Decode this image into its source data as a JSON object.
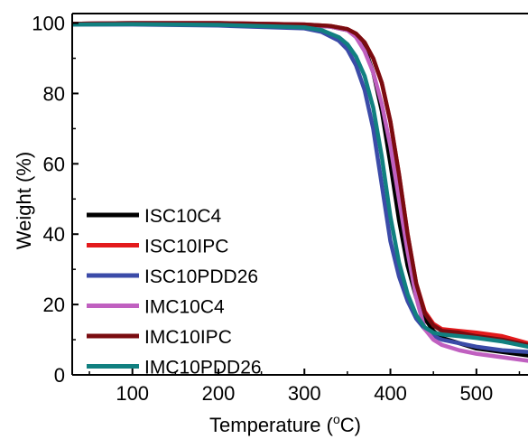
{
  "chart_data": {
    "type": "line",
    "title": "",
    "xlabel": "Temperature (",
    "xlabel_unit_sup": "o",
    "xlabel_unit_tail": "C)",
    "ylabel": "Weight (%)",
    "xlim": [
      30,
      560
    ],
    "ylim": [
      0,
      104
    ],
    "x_ticks": [
      100,
      200,
      300,
      400,
      500
    ],
    "x_tick_labels": [
      "100",
      "200",
      "300",
      "400",
      "500"
    ],
    "y_ticks": [
      0,
      20,
      40,
      60,
      80,
      100
    ],
    "y_tick_labels": [
      "0",
      "20",
      "40",
      "60",
      "80",
      "100"
    ],
    "grid": false,
    "legend_position": "bottom-left",
    "series": [
      {
        "name": "ISC10C4",
        "color": "#000000",
        "x": [
          30,
          100,
          200,
          300,
          330,
          350,
          360,
          370,
          380,
          390,
          400,
          410,
          420,
          430,
          440,
          450,
          460,
          480,
          500,
          530,
          560
        ],
        "y": [
          99.8,
          100,
          100,
          99.5,
          99.0,
          98.0,
          96.5,
          93.0,
          86.0,
          75.0,
          60.0,
          44.0,
          31.0,
          22.0,
          16.0,
          12.5,
          10.5,
          9.0,
          7.5,
          6.5,
          5.5
        ]
      },
      {
        "name": "ISC10IPC",
        "color": "#e31a1c",
        "x": [
          30,
          100,
          200,
          300,
          330,
          350,
          360,
          370,
          380,
          390,
          400,
          410,
          420,
          430,
          440,
          450,
          460,
          480,
          500,
          530,
          560
        ],
        "y": [
          99.8,
          100,
          100,
          99.6,
          99.2,
          98.3,
          97.0,
          94.5,
          90.0,
          83.0,
          72.0,
          57.0,
          40.0,
          26.0,
          18.0,
          14.5,
          13.0,
          12.5,
          12.0,
          11.0,
          9.0
        ]
      },
      {
        "name": "ISC10PDD26",
        "color": "#3b4ba8",
        "x": [
          30,
          100,
          200,
          300,
          320,
          340,
          350,
          360,
          370,
          380,
          390,
          400,
          410,
          420,
          430,
          440,
          450,
          460,
          480,
          500,
          530,
          560
        ],
        "y": [
          99.6,
          99.6,
          99.3,
          98.5,
          97.5,
          95.0,
          92.5,
          88.0,
          81.0,
          70.0,
          54.0,
          38.0,
          28.0,
          21.0,
          16.0,
          13.0,
          11.0,
          10.0,
          9.0,
          8.0,
          7.0,
          6.5
        ]
      },
      {
        "name": "IMC10C4",
        "color": "#c060c0",
        "x": [
          30,
          100,
          200,
          300,
          330,
          350,
          360,
          370,
          380,
          390,
          400,
          410,
          420,
          430,
          440,
          450,
          460,
          480,
          500,
          530,
          560
        ],
        "y": [
          99.8,
          100,
          100,
          99.6,
          99.0,
          98.0,
          96.0,
          92.0,
          86.0,
          77.0,
          65.0,
          50.0,
          35.0,
          22.0,
          13.0,
          10.0,
          8.5,
          7.0,
          6.0,
          5.0,
          4.0
        ]
      },
      {
        "name": "IMC10IPC",
        "color": "#7a0c10",
        "x": [
          30,
          100,
          200,
          300,
          330,
          350,
          360,
          370,
          380,
          390,
          400,
          410,
          420,
          430,
          440,
          450,
          460,
          480,
          500,
          530,
          560
        ],
        "y": [
          99.8,
          100,
          100,
          99.6,
          99.2,
          98.3,
          97.0,
          94.5,
          90.0,
          83.0,
          72.0,
          57.0,
          40.0,
          26.0,
          17.5,
          14.0,
          12.5,
          12.0,
          11.0,
          10.0,
          8.5
        ]
      },
      {
        "name": "IMC10PDD26",
        "color": "#118080",
        "x": [
          30,
          100,
          200,
          300,
          320,
          340,
          350,
          360,
          370,
          380,
          390,
          400,
          410,
          420,
          430,
          440,
          450,
          460,
          480,
          500,
          530,
          560
        ],
        "y": [
          99.6,
          99.7,
          99.5,
          98.8,
          98.0,
          96.0,
          94.0,
          90.5,
          85.0,
          76.0,
          62.0,
          45.0,
          32.0,
          23.0,
          17.0,
          13.5,
          12.0,
          11.5,
          11.0,
          10.5,
          9.5,
          8.0
        ]
      }
    ]
  }
}
